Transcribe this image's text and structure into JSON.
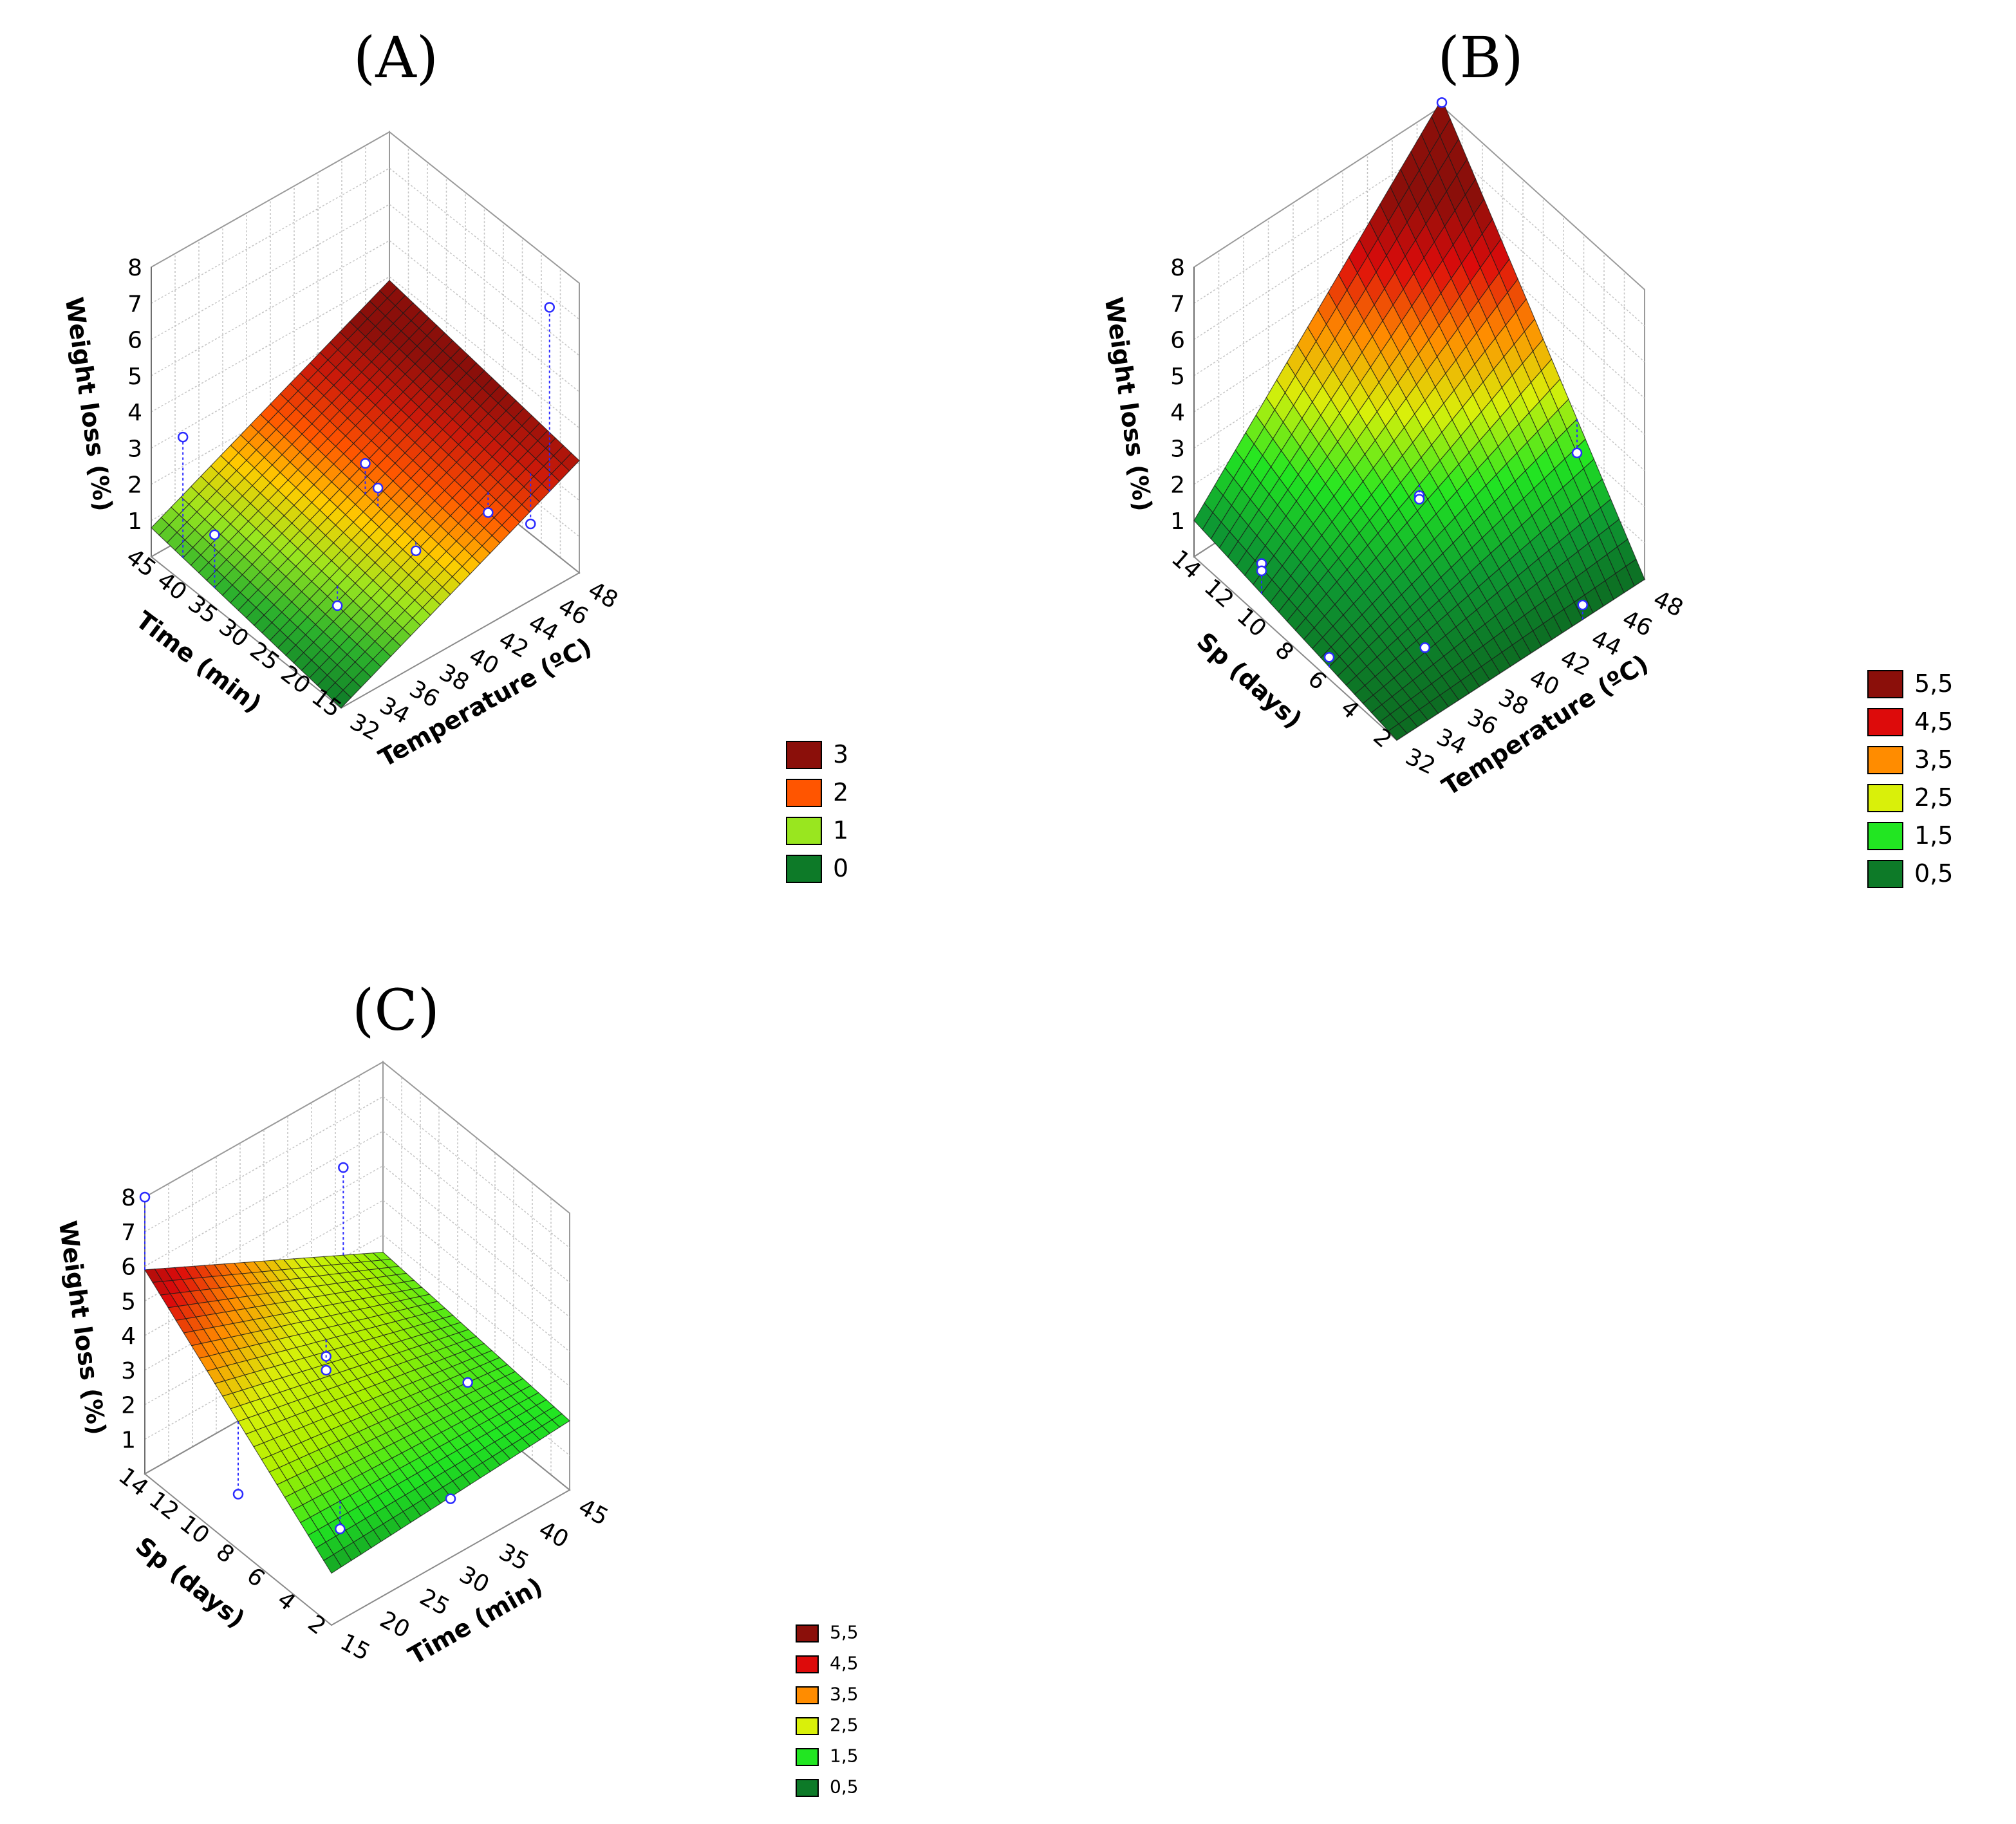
{
  "chart_data": [
    {
      "panel": "(A)",
      "type": "surface3d",
      "x_axis": {
        "label": "Temperature (ºC)",
        "ticks": [
          "32",
          "34",
          "36",
          "38",
          "40",
          "42",
          "44",
          "46",
          "48"
        ],
        "range": [
          32,
          48
        ]
      },
      "y_axis": {
        "label": "Time (min)",
        "ticks": [
          "15",
          "20",
          "25",
          "30",
          "35",
          "40",
          "45"
        ],
        "range": [
          15,
          45
        ]
      },
      "z_axis": {
        "label": "Weight loss (%)",
        "ticks": [
          "1",
          "2",
          "3",
          "4",
          "5",
          "6",
          "7",
          "8"
        ],
        "range": [
          0,
          8
        ]
      },
      "surface_corners": {
        "t32_low": 0.0,
        "t48_low": 3.1,
        "t32_high": 0.8,
        "t48_high": 3.9
      },
      "observed_points": [
        {
          "x": 46,
          "y": 15,
          "z": 7.8
        },
        {
          "x": 32,
          "y": 35,
          "z": 2.0
        },
        {
          "x": 36,
          "y": 25,
          "z": 0.5
        },
        {
          "x": 40,
          "y": 22,
          "z": 1.5
        },
        {
          "x": 40,
          "y": 28,
          "z": 2.4
        },
        {
          "x": 40,
          "y": 30,
          "z": 2.8
        },
        {
          "x": 44,
          "y": 20,
          "z": 1.9
        },
        {
          "x": 46,
          "y": 18,
          "z": 1.4
        },
        {
          "x": 32,
          "y": 40,
          "z": 4.0
        }
      ],
      "legend": [
        {
          "label": "3",
          "color": "#8b0f0a"
        },
        {
          "label": "2",
          "color": "#ff5500"
        },
        {
          "label": "1",
          "color": "#99e61f"
        },
        {
          "label": "0",
          "color": "#0d7a28"
        }
      ]
    },
    {
      "panel": "(B)",
      "type": "surface3d",
      "x_axis": {
        "label": "Temperature (ºC)",
        "ticks": [
          "32",
          "34",
          "36",
          "38",
          "40",
          "42",
          "44",
          "46",
          "48"
        ],
        "range": [
          32,
          48
        ]
      },
      "y_axis": {
        "label": "Sp (days)",
        "ticks": [
          "2",
          "4",
          "6",
          "8",
          "10",
          "12",
          "14"
        ],
        "range": [
          2,
          14
        ]
      },
      "z_axis": {
        "label": "Weight loss (%)",
        "ticks": [
          "1",
          "2",
          "3",
          "4",
          "5",
          "6",
          "7",
          "8"
        ],
        "range": [
          0,
          8
        ]
      },
      "surface_corners": {
        "t32_low": 0.0,
        "t48_low": 0.0,
        "t32_high": 1.0,
        "t48_high": 8.2
      },
      "observed_points": [
        {
          "x": 48,
          "y": 14,
          "z": 8.1
        },
        {
          "x": 32,
          "y": 10,
          "z": 1.5
        },
        {
          "x": 32,
          "y": 10,
          "z": 1.3
        },
        {
          "x": 40,
          "y": 8,
          "z": 2.0
        },
        {
          "x": 40,
          "y": 8,
          "z": 1.9
        },
        {
          "x": 48,
          "y": 6,
          "z": 1.8
        },
        {
          "x": 32,
          "y": 6,
          "z": 0.6
        },
        {
          "x": 36,
          "y": 4,
          "z": 0.6
        },
        {
          "x": 44,
          "y": 2,
          "z": 0.4
        }
      ],
      "legend": [
        {
          "label": "5,5",
          "color": "#8b0f0a"
        },
        {
          "label": "4,5",
          "color": "#dd0b0b"
        },
        {
          "label": "3,5",
          "color": "#ff8c00"
        },
        {
          "label": "2,5",
          "color": "#d9f00a"
        },
        {
          "label": "1,5",
          "color": "#22e622"
        },
        {
          "label": "0,5",
          "color": "#0d7a28"
        }
      ]
    },
    {
      "panel": "(C)",
      "type": "surface3d",
      "x_axis": {
        "label": "Time (min)",
        "ticks": [
          "15",
          "20",
          "25",
          "30",
          "35",
          "40",
          "45"
        ],
        "range": [
          15,
          45
        ]
      },
      "y_axis": {
        "label": "Sp (days)",
        "ticks": [
          "2",
          "4",
          "6",
          "8",
          "10",
          "12",
          "14"
        ],
        "range": [
          2,
          14
        ]
      },
      "z_axis": {
        "label": "Weight loss (%)",
        "ticks": [
          "1",
          "2",
          "3",
          "4",
          "5",
          "6",
          "7",
          "8"
        ],
        "range": [
          0,
          8
        ]
      },
      "surface_corners": {
        "t15_low": 1.5,
        "t45_low": 2.0,
        "t15_high": 5.9,
        "t45_high": 2.5
      },
      "observed_points": [
        {
          "x": 15,
          "y": 14,
          "z": 8.0
        },
        {
          "x": 40,
          "y": 14,
          "z": 5.6
        },
        {
          "x": 30,
          "y": 10,
          "z": 2.9
        },
        {
          "x": 30,
          "y": 10,
          "z": 2.5
        },
        {
          "x": 40,
          "y": 6,
          "z": 2.3
        },
        {
          "x": 15,
          "y": 8,
          "z": 1.6
        },
        {
          "x": 20,
          "y": 4,
          "z": 1.4
        },
        {
          "x": 30,
          "y": 2,
          "z": 1.7
        }
      ],
      "legend": [
        {
          "label": "5,5",
          "color": "#8b0f0a"
        },
        {
          "label": "4,5",
          "color": "#dd0b0b"
        },
        {
          "label": "3,5",
          "color": "#ff8c00"
        },
        {
          "label": "2,5",
          "color": "#d9f00a"
        },
        {
          "label": "1,5",
          "color": "#22e622"
        },
        {
          "label": "0,5",
          "color": "#0d7a28"
        }
      ]
    }
  ]
}
